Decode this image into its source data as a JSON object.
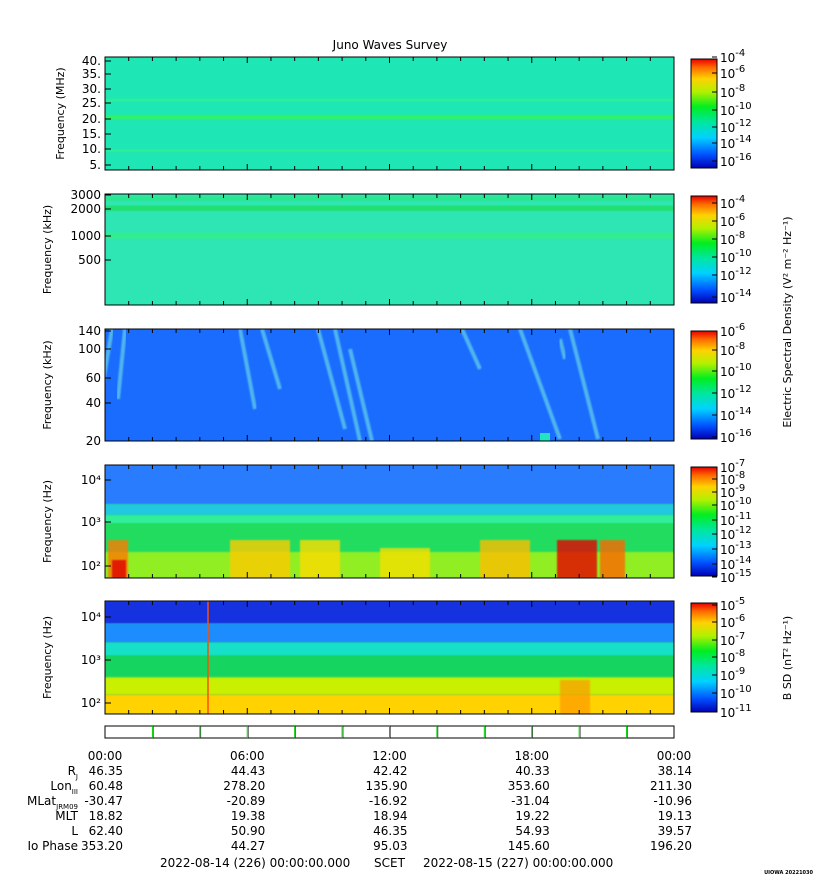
{
  "title": "Juno Waves Survey",
  "credit": "UIOWA 20221030",
  "colors": {
    "frame": "#000000",
    "background": "#ffffff",
    "tick_green": "#00cc00"
  },
  "chart_data": [
    {
      "type": "heatmap",
      "ylabel": "Frequency (MHz)",
      "yticks": [
        "40.",
        "35.",
        "30.",
        "25.",
        "20.",
        "15.",
        "10.",
        "5."
      ],
      "yscale": "linear",
      "ylim": [
        3.5,
        41.5
      ],
      "colorbar_ticks": [
        "-4",
        "-6",
        "-8",
        "-10",
        "-12",
        "-14",
        "-16"
      ],
      "colorbar_label": "",
      "base_color": "#1ee6b4",
      "bands": [
        {
          "y_from": 20.5,
          "y_to": 22.0,
          "color": "#2ef26a"
        },
        {
          "y_from": 26.5,
          "y_to": 27.5,
          "color": "#2cf09a"
        },
        {
          "y_from": 9.5,
          "y_to": 10.5,
          "color": "#2cf09a"
        }
      ]
    },
    {
      "type": "heatmap",
      "ylabel": "Frequency (kHz)",
      "yticks": [
        "3000",
        "2000",
        "1000",
        "500"
      ],
      "yscale": "log",
      "ylim": [
        150,
        3000
      ],
      "colorbar_ticks": [
        "-4",
        "-6",
        "-8",
        "-10",
        "-12",
        "-14"
      ],
      "colorbar_label": "Electric Spectral Density (V² m⁻² Hz⁻¹)",
      "base_color": "#2ee6b4",
      "bands": [
        {
          "y_from": 1900,
          "y_to": 2200,
          "color": "#22e070"
        },
        {
          "y_from": 2500,
          "y_to": 2800,
          "color": "#2ae68c"
        },
        {
          "y_from": 900,
          "y_to": 1050,
          "color": "#32ec8e"
        }
      ]
    },
    {
      "type": "heatmap",
      "ylabel": "Frequency (kHz)",
      "yticks": [
        "140",
        "100",
        "60",
        "40",
        "20"
      ],
      "yscale": "log",
      "ylim": [
        20,
        140
      ],
      "colorbar_ticks": [
        "-6",
        "-8",
        "-10",
        "-12",
        "-14",
        "-16"
      ],
      "colorbar_label": "",
      "base_color": "#1a6cff",
      "bands": []
    },
    {
      "type": "heatmap",
      "ylabel": "Frequency (Hz)",
      "yticks": [
        "10⁴",
        "10³",
        "10²"
      ],
      "yscale": "log",
      "ylim": [
        50,
        20000
      ],
      "colorbar_ticks": [
        "-7",
        "-8",
        "-9",
        "-10",
        "-11",
        "-12",
        "-13",
        "-14",
        "-15"
      ],
      "colorbar_label": "",
      "base_color": "#10d86a",
      "bands": [
        {
          "y_from": 2500,
          "y_to": 20000,
          "color": "#2a7cff"
        },
        {
          "y_from": 1400,
          "y_to": 2500,
          "color": "#20c8e0"
        },
        {
          "y_from": 900,
          "y_to": 1400,
          "color": "#30ee9a"
        },
        {
          "y_from": 200,
          "y_to": 900,
          "color": "#20dc60"
        },
        {
          "y_from": 50,
          "y_to": 200,
          "color": "#90ee20"
        }
      ]
    },
    {
      "type": "heatmap",
      "ylabel": "Frequency (Hz)",
      "yticks": [
        "10⁴",
        "10³",
        "10²"
      ],
      "yscale": "log",
      "ylim": [
        50,
        20000
      ],
      "colorbar_ticks": [
        "-5",
        "-6",
        "-7",
        "-8",
        "-9",
        "-10",
        "-11"
      ],
      "colorbar_label": "B SD (nT² Hz⁻¹)",
      "base_color": "#10d26a",
      "bands": [
        {
          "y_from": 6000,
          "y_to": 20000,
          "color": "#1830e0"
        },
        {
          "y_from": 2200,
          "y_to": 6000,
          "color": "#1a8cff"
        },
        {
          "y_from": 1100,
          "y_to": 2200,
          "color": "#16e0c8"
        },
        {
          "y_from": 350,
          "y_to": 1100,
          "color": "#18d460"
        },
        {
          "y_from": 140,
          "y_to": 350,
          "color": "#c8f000"
        },
        {
          "y_from": 50,
          "y_to": 140,
          "color": "#ffd200"
        }
      ]
    }
  ],
  "time_axis": {
    "tick_labels": [
      "00:00",
      "06:00",
      "12:00",
      "18:00",
      "00:00"
    ],
    "rows": [
      {
        "label": "R",
        "sub": "J",
        "values": [
          "46.35",
          "44.43",
          "42.42",
          "40.33",
          "38.14"
        ]
      },
      {
        "label": "Lon",
        "sub": "III",
        "values": [
          "60.48",
          "278.20",
          "135.90",
          "353.60",
          "211.30"
        ]
      },
      {
        "label": "MLat",
        "sub": "JRM09",
        "values": [
          "-30.47",
          "-20.89",
          "-16.92",
          "-31.04",
          "-10.96"
        ]
      },
      {
        "label": "MLT",
        "sub": "",
        "values": [
          "18.82",
          "19.38",
          "18.94",
          "19.22",
          "19.13"
        ]
      },
      {
        "label": "L",
        "sub": "",
        "values": [
          "62.40",
          "50.90",
          "46.35",
          "54.93",
          "39.57"
        ]
      },
      {
        "label": "Io Phase",
        "sub": "",
        "values": [
          "353.20",
          "44.27",
          "95.03",
          "145.60",
          "196.20"
        ]
      }
    ],
    "start": "2022-08-14 (226) 00:00:00.000",
    "scet": "SCET",
    "end": "2022-08-15 (227) 00:00:00.000"
  }
}
